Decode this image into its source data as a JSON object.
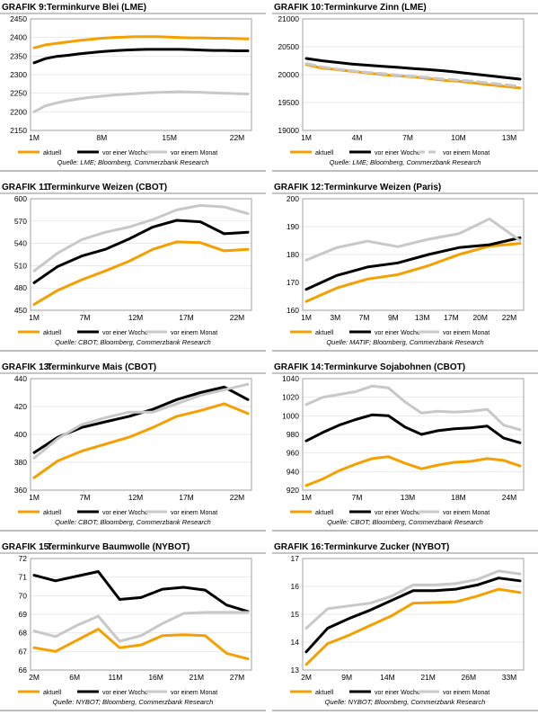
{
  "colors": {
    "aktuell": "#f5a000",
    "woche": "#000000",
    "monat": "#c8c8c8",
    "grid": "#e0e0e0",
    "frame": "#bdbdbd",
    "axis": "#8c8c8c"
  },
  "chart_data": [
    {
      "type": "line",
      "grafik": "GRAFIK 9:",
      "title": "Terminkurve Blei (LME)",
      "source": "Quelle: LME; Bloomberg, Commerzbank Research",
      "xticks": [
        "1M",
        "8M",
        "15M",
        "22M"
      ],
      "ylim": [
        2150,
        2450
      ],
      "yticks": [
        2150,
        2200,
        2250,
        2300,
        2350,
        2400,
        2450
      ],
      "legend": [
        "aktuell",
        "vor einer Woche",
        "vor einem Monat"
      ],
      "series": [
        {
          "name": "aktuell",
          "style": "solid",
          "values": [
            2372,
            2380,
            2384,
            2388,
            2392,
            2395,
            2398,
            2400,
            2401,
            2402,
            2402,
            2402,
            2401,
            2400,
            2399,
            2399,
            2398,
            2398,
            2397,
            2396
          ]
        },
        {
          "name": "vor einer Woche",
          "style": "solid",
          "values": [
            2332,
            2343,
            2349,
            2352,
            2356,
            2359,
            2362,
            2364,
            2366,
            2367,
            2368,
            2368,
            2368,
            2368,
            2367,
            2366,
            2365,
            2365,
            2364,
            2364
          ]
        },
        {
          "name": "vor einem Monat",
          "style": "solid",
          "values": [
            2200,
            2216,
            2224,
            2230,
            2235,
            2239,
            2242,
            2245,
            2247,
            2249,
            2251,
            2252,
            2253,
            2254,
            2253,
            2252,
            2251,
            2250,
            2249,
            2248
          ]
        }
      ]
    },
    {
      "type": "line",
      "grafik": "GRAFIK 10:",
      "title": "Terminkurve Zinn (LME)",
      "source": "Quelle: LME; Bloomberg, Commerzbank Research",
      "xticks": [
        "1M",
        "4M",
        "7M",
        "10M",
        "13M"
      ],
      "ylim": [
        19000,
        21000
      ],
      "yticks": [
        19000,
        19500,
        20000,
        20500,
        21000
      ],
      "legend": [
        "aktuell",
        "vor einer Woche",
        "vor einem Monat"
      ],
      "series": [
        {
          "name": "aktuell",
          "style": "solid",
          "values": [
            20180,
            20120,
            20090,
            20060,
            20030,
            20000,
            19980,
            19960,
            19930,
            19900,
            19880,
            19850,
            19820,
            19790,
            19760
          ]
        },
        {
          "name": "vor einer Woche",
          "style": "solid",
          "values": [
            20290,
            20250,
            20220,
            20190,
            20170,
            20150,
            20130,
            20110,
            20090,
            20070,
            20040,
            20010,
            19980,
            19950,
            19920
          ]
        },
        {
          "name": "vor einem Monat",
          "style": "dashed",
          "values": [
            20200,
            20140,
            20100,
            20070,
            20040,
            20020,
            19990,
            19970,
            19950,
            19920,
            19900,
            19880,
            19850,
            19820,
            19790
          ]
        }
      ]
    },
    {
      "type": "line",
      "grafik": "GRAFIK 11:",
      "title": "Terminkurve Weizen (CBOT)",
      "source": "Quelle: CBOT; Bloomberg, Commerzbank Research",
      "xticks": [
        "1M",
        "7M",
        "12M",
        "17M",
        "22M"
      ],
      "ylim": [
        450,
        600
      ],
      "yticks": [
        450,
        480,
        510,
        540,
        570,
        600
      ],
      "legend": [
        "aktuell",
        "vor einer Woche",
        "vor einem Monat"
      ],
      "series": [
        {
          "name": "aktuell",
          "style": "solid",
          "values": [
            458,
            477,
            491,
            503,
            516,
            532,
            542,
            541,
            530,
            532
          ]
        },
        {
          "name": "vor einer Woche",
          "style": "solid",
          "values": [
            487,
            509,
            523,
            532,
            546,
            562,
            571,
            569,
            553,
            555
          ]
        },
        {
          "name": "vor einem Monat",
          "style": "solid",
          "values": [
            503,
            527,
            545,
            555,
            562,
            572,
            585,
            591,
            589,
            580
          ]
        }
      ]
    },
    {
      "type": "line",
      "grafik": "GRAFIK 12:",
      "title": "Terminkurve Weizen (Paris)",
      "source": "Quelle: MATIF; Bloomberg, Commerzbank Research",
      "xticks": [
        "1M",
        "3M",
        "7M",
        "9M",
        "13M",
        "17M",
        "20M",
        "22M"
      ],
      "ylim": [
        160,
        200
      ],
      "yticks": [
        160,
        170,
        180,
        190,
        200
      ],
      "legend": [
        "aktuell",
        "vor einer Woche",
        "vor einem Monat"
      ],
      "series": [
        {
          "name": "aktuell",
          "style": "solid",
          "values": [
            163.2,
            168.0,
            171.2,
            172.8,
            176.0,
            180.0,
            183.0,
            184.0
          ]
        },
        {
          "name": "vor einer Woche",
          "style": "solid",
          "values": [
            167.5,
            172.5,
            175.5,
            177.0,
            180.0,
            182.5,
            183.5,
            186.0
          ]
        },
        {
          "name": "vor einem Monat",
          "style": "solid",
          "values": [
            178.0,
            182.5,
            184.8,
            182.8,
            185.5,
            187.5,
            192.8,
            185.0
          ]
        }
      ]
    },
    {
      "type": "line",
      "grafik": "GRAFIK 13:",
      "title": "Terminkurve Mais (CBOT)",
      "source": "Quelle: CBOT; Bloomberg, Commerzbank Research",
      "xticks": [
        "1M",
        "7M",
        "12M",
        "17M",
        "22M"
      ],
      "ylim": [
        360,
        440
      ],
      "yticks": [
        360,
        380,
        400,
        420,
        440
      ],
      "legend": [
        "aktuell",
        "vor einer Woche",
        "vor einem Monat"
      ],
      "series": [
        {
          "name": "aktuell",
          "style": "solid",
          "values": [
            369,
            381,
            388,
            393,
            398,
            405,
            413,
            417,
            422,
            415
          ]
        },
        {
          "name": "vor einer Woche",
          "style": "solid",
          "values": [
            387,
            398,
            405,
            409,
            413,
            418,
            425,
            430,
            434,
            425
          ]
        },
        {
          "name": "vor einem Monat",
          "style": "solid",
          "values": [
            383,
            397,
            407,
            412,
            416,
            416,
            422,
            428,
            432,
            436
          ]
        }
      ]
    },
    {
      "type": "line",
      "grafik": "GRAFIK 14:",
      "title": "Terminkurve Sojabohnen (CBOT)",
      "source": "Quelle: CBOT; Bloomberg, Commerzbank Research",
      "xticks": [
        "1M",
        "7M",
        "13M",
        "18M",
        "24M"
      ],
      "ylim": [
        920,
        1040
      ],
      "yticks": [
        920,
        940,
        960,
        980,
        1000,
        1020,
        1040
      ],
      "legend": [
        "aktuell",
        "vor einer Woche",
        "vor einem Monat"
      ],
      "series": [
        {
          "name": "aktuell",
          "style": "solid",
          "values": [
            925,
            932,
            941,
            948,
            954,
            956,
            949,
            943,
            947,
            950,
            951,
            954,
            952,
            946
          ]
        },
        {
          "name": "vor einer Woche",
          "style": "solid",
          "values": [
            973,
            982,
            990,
            996,
            1001,
            1000,
            988,
            980,
            984,
            986,
            987,
            989,
            976,
            971
          ]
        },
        {
          "name": "vor einem Monat",
          "style": "solid",
          "values": [
            1012,
            1020,
            1023,
            1026,
            1032,
            1030,
            1015,
            1003,
            1005,
            1004,
            1005,
            1007,
            990,
            985
          ]
        }
      ]
    },
    {
      "type": "line",
      "grafik": "GRAFIK 15:",
      "title": "Terminkurve Baumwolle (NYBOT)",
      "source": "Quelle: NYBOT; Bloomberg, Commerzbank Research",
      "xticks": [
        "2M",
        "6M",
        "11M",
        "16M",
        "21M",
        "27M"
      ],
      "ylim": [
        66,
        72
      ],
      "yticks": [
        66,
        67,
        68,
        69,
        70,
        71,
        72
      ],
      "legend": [
        "aktuell",
        "vor einer Woche",
        "vor einem Monat"
      ],
      "series": [
        {
          "name": "aktuell",
          "style": "solid",
          "values": [
            67.2,
            67.0,
            67.6,
            68.2,
            67.2,
            67.35,
            67.85,
            67.9,
            67.85,
            66.9,
            66.6
          ]
        },
        {
          "name": "vor einer Woche",
          "style": "solid",
          "values": [
            71.1,
            70.8,
            71.05,
            71.3,
            69.8,
            69.9,
            70.35,
            70.45,
            70.3,
            69.5,
            69.15
          ]
        },
        {
          "name": "vor einem Monat",
          "style": "solid",
          "values": [
            68.1,
            67.8,
            68.4,
            68.9,
            67.55,
            67.85,
            68.5,
            69.05,
            69.1,
            69.1,
            69.1
          ]
        }
      ]
    },
    {
      "type": "line",
      "grafik": "GRAFIK 16:",
      "title": "Terminkurve Zucker (NYBOT)",
      "source": "Quelle: NYBOT; Bloomberg, Commerzbank Research",
      "xticks": [
        "2M",
        "9M",
        "14M",
        "21M",
        "26M",
        "33M"
      ],
      "ylim": [
        13,
        17
      ],
      "yticks": [
        13.0,
        14.0,
        15.0,
        16.0,
        17.0
      ],
      "legend": [
        "aktuell",
        "vor einer Woche",
        "vor einem Monat"
      ],
      "series": [
        {
          "name": "aktuell",
          "style": "solid",
          "values": [
            13.2,
            13.95,
            14.25,
            14.6,
            14.95,
            15.4,
            15.42,
            15.45,
            15.65,
            15.9,
            15.78
          ]
        },
        {
          "name": "vor einer Woche",
          "style": "solid",
          "values": [
            13.65,
            14.5,
            14.85,
            15.15,
            15.5,
            15.85,
            15.85,
            15.9,
            16.05,
            16.3,
            16.2
          ]
        },
        {
          "name": "vor einem Monat",
          "style": "solid",
          "values": [
            14.5,
            15.2,
            15.3,
            15.4,
            15.65,
            16.05,
            16.05,
            16.1,
            16.25,
            16.55,
            16.45
          ]
        }
      ]
    }
  ]
}
